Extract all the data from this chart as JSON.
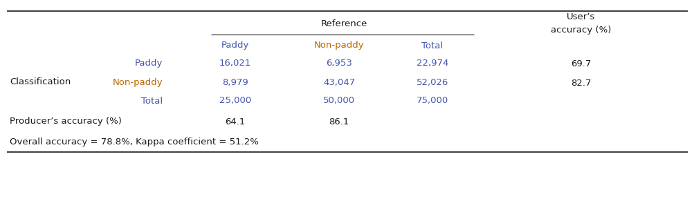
{
  "figsize": [
    10.04,
    2.88
  ],
  "dpi": 100,
  "bg_color": "#ffffff",
  "text_color_black": "#1a1a1a",
  "text_color_blue": "#4455aa",
  "text_color_orange": "#bb6600",
  "font_size": 9.5,
  "header_reference": "Reference",
  "header_users": "User’s",
  "header_accuracy": "accuracy (%)",
  "col_headers": [
    "Paddy",
    "Non-paddy",
    "Total"
  ],
  "row_label_classification": "Classification",
  "row_labels": [
    "Paddy",
    "Non-paddy",
    "Total"
  ],
  "data_rows": [
    [
      "16,021",
      "6,953",
      "22,974",
      "69.7"
    ],
    [
      "8,979",
      "43,047",
      "52,026",
      "82.7"
    ],
    [
      "25,000",
      "50,000",
      "75,000",
      ""
    ]
  ],
  "producer_label": "Producer’s accuracy (%)",
  "producer_values": [
    "64.1",
    "86.1"
  ],
  "overall_label": "Overall accuracy = 78.8%, Kappa coefficient = 51.2%"
}
